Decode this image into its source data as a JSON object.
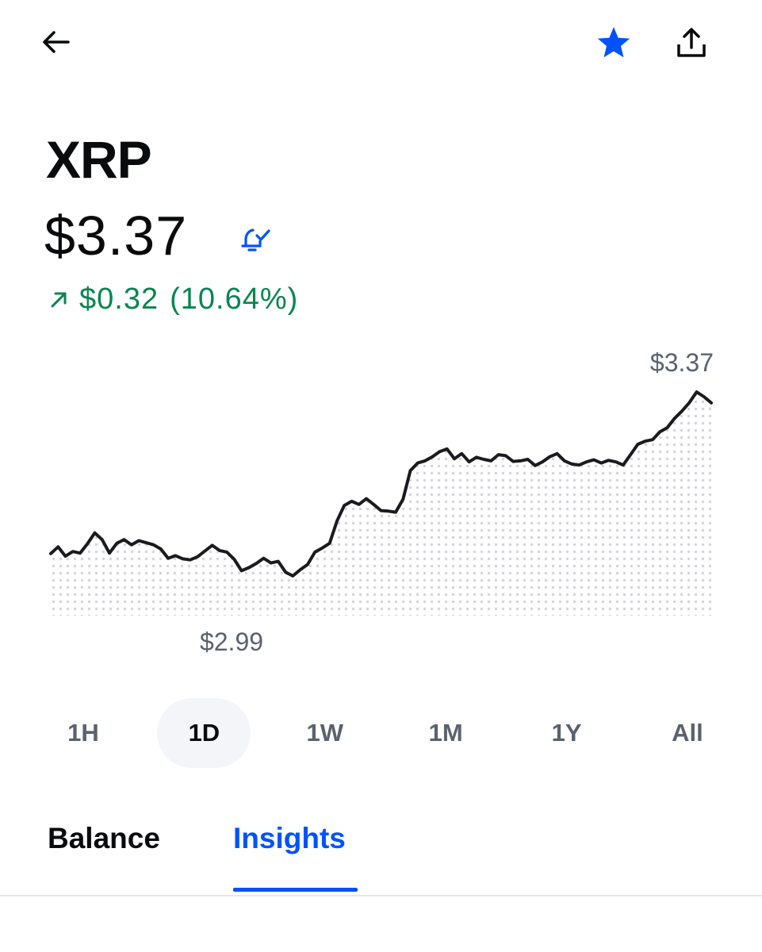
{
  "header": {
    "back_icon": "arrow-left-icon",
    "star_icon": "star-icon",
    "share_icon": "share-icon",
    "accent_color": "#0052ff"
  },
  "asset": {
    "symbol": "XRP",
    "price": "$3.37",
    "alert_icon": "bell-check-icon",
    "change_icon": "arrow-up-right-icon",
    "change_amount": "$0.32",
    "change_percent": "(10.64%)",
    "change_color": "#098551"
  },
  "chart_data": {
    "type": "line",
    "timeframe": "1D",
    "high_label": "$3.37",
    "low_label": "$2.99",
    "ylim": [
      2.91,
      3.4
    ],
    "values": [
      3.045,
      3.058,
      3.04,
      3.049,
      3.046,
      3.064,
      3.085,
      3.072,
      3.046,
      3.065,
      3.072,
      3.062,
      3.07,
      3.066,
      3.062,
      3.054,
      3.036,
      3.041,
      3.035,
      3.033,
      3.039,
      3.05,
      3.061,
      3.051,
      3.048,
      3.034,
      3.012,
      3.018,
      3.026,
      3.036,
      3.027,
      3.03,
      3.009,
      3.002,
      3.014,
      3.024,
      3.048,
      3.056,
      3.065,
      3.108,
      3.138,
      3.146,
      3.14,
      3.151,
      3.14,
      3.128,
      3.127,
      3.125,
      3.15,
      3.205,
      3.22,
      3.224,
      3.232,
      3.242,
      3.247,
      3.228,
      3.238,
      3.222,
      3.231,
      3.227,
      3.224,
      3.236,
      3.234,
      3.223,
      3.224,
      3.227,
      3.215,
      3.222,
      3.232,
      3.238,
      3.224,
      3.218,
      3.216,
      3.222,
      3.226,
      3.22,
      3.225,
      3.222,
      3.216,
      3.236,
      3.256,
      3.262,
      3.265,
      3.28,
      3.288,
      3.306,
      3.32,
      3.336,
      3.357,
      3.348,
      3.336
    ],
    "grid": false,
    "fill": "dotted"
  },
  "ranges": {
    "items": [
      {
        "id": "1h",
        "label": "1H"
      },
      {
        "id": "1d",
        "label": "1D"
      },
      {
        "id": "1w",
        "label": "1W"
      },
      {
        "id": "1m",
        "label": "1M"
      },
      {
        "id": "1y",
        "label": "1Y"
      },
      {
        "id": "all",
        "label": "All"
      }
    ],
    "selected": "1D"
  },
  "tabs": {
    "balance": "Balance",
    "insights": "Insights",
    "selected": "Insights"
  }
}
